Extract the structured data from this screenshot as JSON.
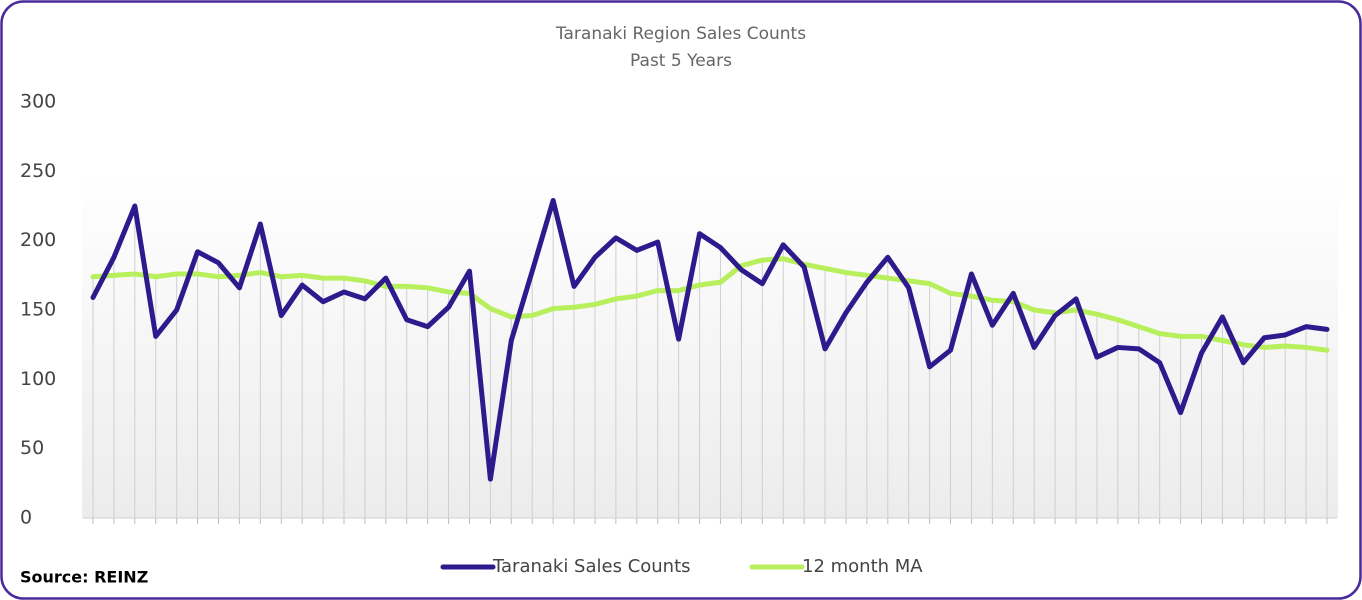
{
  "chart_data": {
    "type": "line",
    "title": "Taranaki Region Sales Counts",
    "subtitle": "Past 5 Years",
    "source": "Source: REINZ",
    "categories": [
      null,
      null,
      null,
      null,
      null,
      null,
      null,
      null,
      null,
      null,
      null,
      null,
      null,
      null,
      null,
      null,
      null,
      null,
      null,
      null,
      null,
      null,
      null,
      null,
      null,
      null,
      null,
      null,
      null,
      null,
      null,
      null,
      null,
      null,
      null,
      null,
      null,
      null,
      null,
      null,
      null,
      null,
      null,
      null,
      null,
      null,
      null,
      null,
      null,
      null,
      null,
      null,
      null,
      null,
      null,
      null,
      null,
      null,
      null,
      null
    ],
    "series": [
      {
        "name": "Taranaki Sales Counts",
        "color": "#2e1a8c",
        "values": [
          159,
          188,
          225,
          131,
          150,
          192,
          184,
          166,
          212,
          146,
          168,
          156,
          163,
          158,
          173,
          143,
          138,
          152,
          178,
          28,
          128,
          178,
          229,
          167,
          188,
          202,
          193,
          199,
          129,
          205,
          195,
          179,
          169,
          197,
          181,
          122,
          148,
          170,
          188,
          166,
          109,
          121,
          176,
          139,
          162,
          123,
          146,
          158,
          116,
          123,
          122,
          112,
          76,
          119,
          145,
          112,
          130,
          132,
          138,
          136
        ]
      },
      {
        "name": "12 month MA",
        "color": "#b8ef5c",
        "values": [
          174,
          175,
          176,
          174,
          176,
          176,
          174,
          175,
          177,
          174,
          175,
          173,
          173,
          171,
          167,
          167,
          166,
          163,
          162,
          151,
          145,
          146,
          151,
          152,
          154,
          158,
          160,
          164,
          164,
          168,
          170,
          182,
          186,
          187,
          183,
          180,
          177,
          175,
          173,
          171,
          169,
          162,
          160,
          157,
          156,
          150,
          148,
          150,
          147,
          143,
          138,
          133,
          131,
          131,
          128,
          125,
          123,
          124,
          123,
          121
        ]
      }
    ],
    "ylim": [
      0,
      300
    ],
    "yticks": [
      0,
      50,
      100,
      150,
      200,
      250,
      300
    ],
    "legend": "bottom"
  }
}
